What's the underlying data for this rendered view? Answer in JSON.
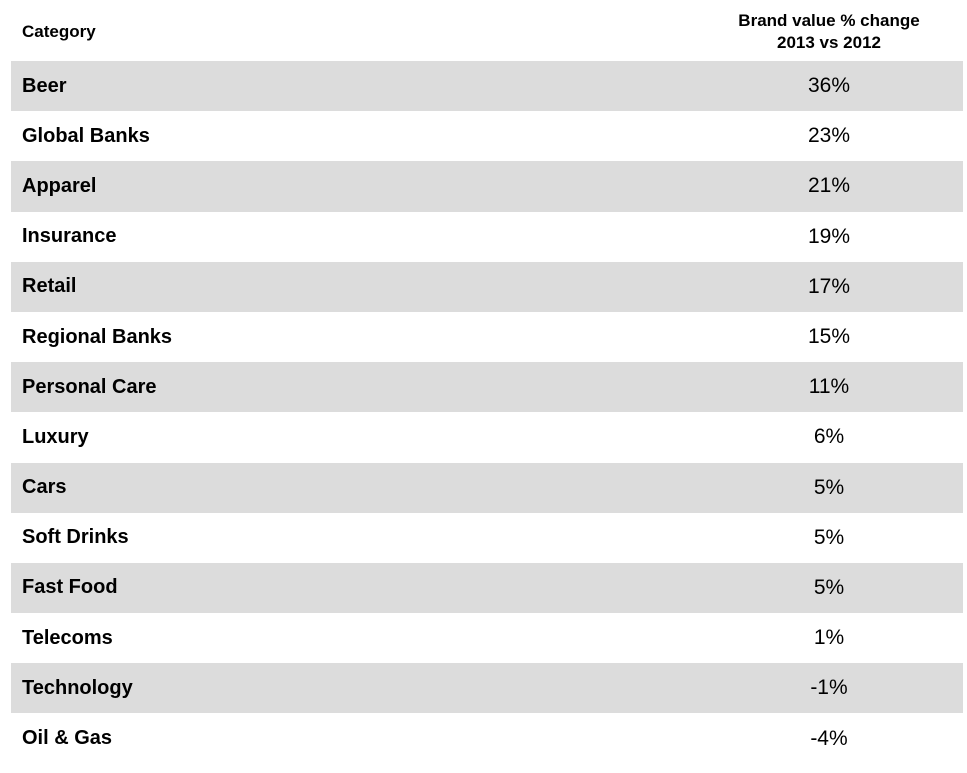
{
  "chart_data": {
    "type": "table",
    "columns": [
      "Category",
      "Brand value % change",
      "2013 vs 2012"
    ],
    "header": {
      "category": "Category",
      "value_line1": "Brand value % change",
      "value_line2": "2013 vs 2012"
    },
    "rows": [
      {
        "category": "Beer",
        "value": "36%"
      },
      {
        "category": "Global Banks",
        "value": "23%"
      },
      {
        "category": "Apparel",
        "value": "21%"
      },
      {
        "category": "Insurance",
        "value": "19%"
      },
      {
        "category": "Retail",
        "value": "17%"
      },
      {
        "category": "Regional Banks",
        "value": "15%"
      },
      {
        "category": "Personal Care",
        "value": "11%"
      },
      {
        "category": "Luxury",
        "value": "6%"
      },
      {
        "category": "Cars",
        "value": "5%"
      },
      {
        "category": "Soft Drinks",
        "value": "5%"
      },
      {
        "category": "Fast Food",
        "value": "5%"
      },
      {
        "category": "Telecoms",
        "value": "1%"
      },
      {
        "category": "Technology",
        "value": "-1%"
      },
      {
        "category": "Oil & Gas",
        "value": "-4%"
      }
    ],
    "colors": {
      "shaded_row": "#dcdcdc",
      "plain_row": "#ffffff",
      "text": "#000000"
    }
  }
}
